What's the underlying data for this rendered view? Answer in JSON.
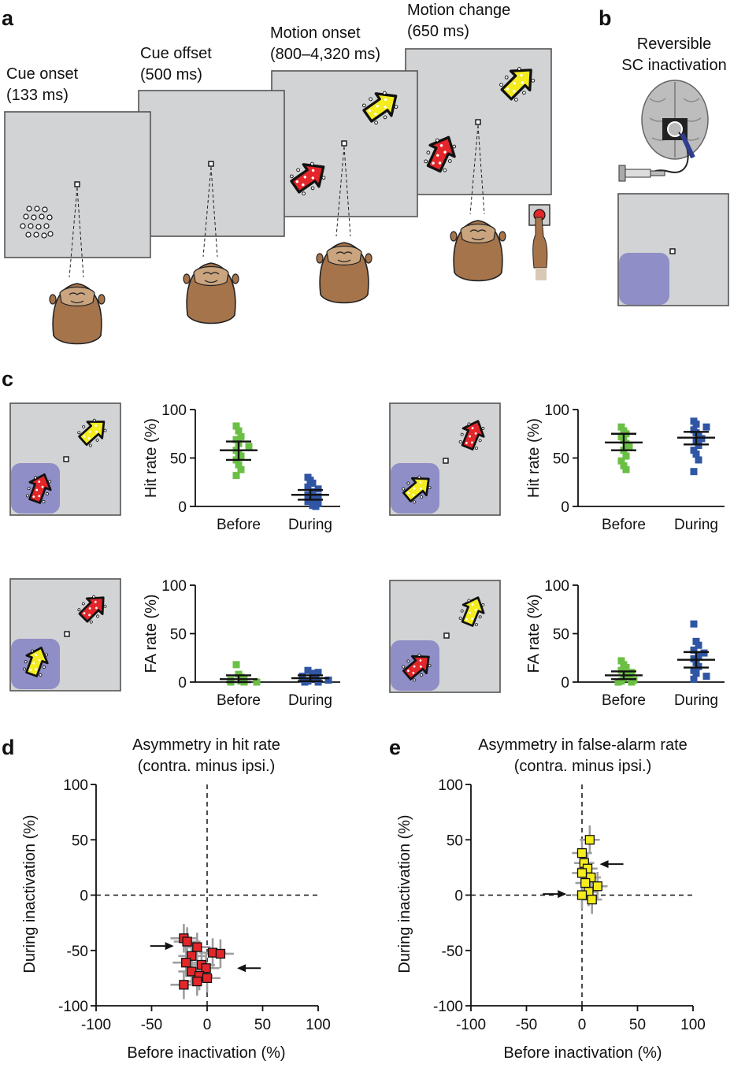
{
  "panel_labels": {
    "a": "a",
    "b": "b",
    "c": "c",
    "d": "d",
    "e": "e"
  },
  "panel_a": {
    "stages": [
      {
        "line1": "Cue onset",
        "line2": "(133 ms)"
      },
      {
        "line1": "Cue offset",
        "line2": "(500 ms)"
      },
      {
        "line1": "Motion onset",
        "line2": "(800–4,320 ms)"
      },
      {
        "line1": "Motion change",
        "line2": "(650 ms)"
      }
    ]
  },
  "panel_b": {
    "title_line1": "Reversible",
    "title_line2": "SC inactivation"
  },
  "colors": {
    "before": "#6abf45",
    "during": "#2f55a4",
    "hit_marker": "#e3262a",
    "fa_marker": "#f4ec1f",
    "field": "#8f8ec6",
    "screen": "#d2d3d5"
  },
  "chart_data": [
    {
      "id": "c-hit-left",
      "type": "scatter",
      "ylabel": "Hit rate (%)",
      "categories": [
        "Before",
        "During"
      ],
      "ylim": [
        0,
        100
      ],
      "yticks": [
        0,
        50,
        100
      ],
      "series": [
        {
          "name": "Before",
          "values": [
            83,
            78,
            72,
            69,
            65,
            62,
            58,
            55,
            52,
            48,
            43,
            38,
            32
          ],
          "mean": 58,
          "ci": [
            48,
            67
          ]
        },
        {
          "name": "During",
          "values": [
            30,
            27,
            24,
            20,
            18,
            15,
            12,
            10,
            8,
            5,
            3,
            1,
            0
          ],
          "mean": 12,
          "ci": [
            7,
            17
          ]
        }
      ]
    },
    {
      "id": "c-hit-right",
      "type": "scatter",
      "ylabel": "Hit rate (%)",
      "categories": [
        "Before",
        "During"
      ],
      "ylim": [
        0,
        100
      ],
      "yticks": [
        0,
        50,
        100
      ],
      "series": [
        {
          "name": "Before",
          "values": [
            82,
            78,
            75,
            72,
            68,
            65,
            62,
            58,
            52,
            47,
            42,
            38
          ],
          "mean": 66,
          "ci": [
            58,
            75
          ]
        },
        {
          "name": "During",
          "values": [
            88,
            85,
            82,
            79,
            76,
            73,
            70,
            67,
            63,
            58,
            54,
            48,
            36
          ],
          "mean": 71,
          "ci": [
            64,
            77
          ]
        }
      ]
    },
    {
      "id": "c-fa-left",
      "type": "scatter",
      "ylabel": "FA rate (%)",
      "categories": [
        "Before",
        "During"
      ],
      "ylim": [
        0,
        100
      ],
      "yticks": [
        0,
        50,
        100
      ],
      "series": [
        {
          "name": "Before",
          "values": [
            18,
            8,
            5,
            3,
            2,
            1,
            0,
            0,
            0
          ],
          "mean": 3,
          "ci": [
            0,
            7
          ]
        },
        {
          "name": "During",
          "values": [
            12,
            10,
            9,
            7,
            6,
            5,
            4,
            3,
            2,
            1,
            0,
            0
          ],
          "mean": 4,
          "ci": [
            1,
            7
          ]
        }
      ]
    },
    {
      "id": "c-fa-right",
      "type": "scatter",
      "ylabel": "FA rate (%)",
      "categories": [
        "Before",
        "During"
      ],
      "ylim": [
        0,
        100
      ],
      "yticks": [
        0,
        50,
        100
      ],
      "series": [
        {
          "name": "Before",
          "values": [
            22,
            18,
            15,
            12,
            10,
            8,
            6,
            4,
            2,
            1,
            0,
            0
          ],
          "mean": 7,
          "ci": [
            3,
            11
          ]
        },
        {
          "name": "During",
          "values": [
            60,
            42,
            38,
            33,
            30,
            27,
            24,
            20,
            16,
            12,
            9,
            6,
            3
          ],
          "mean": 23,
          "ci": [
            15,
            31
          ]
        }
      ]
    },
    {
      "id": "d-scatter",
      "type": "scatter",
      "title_line1": "Asymmetry in hit rate",
      "title_line2": "(contra. minus ipsi.)",
      "xlabel": "Before inactivation (%)",
      "ylabel": "During inactivation (%)",
      "xlim": [
        -100,
        100
      ],
      "ylim": [
        -100,
        100
      ],
      "xticks": [
        -100,
        -50,
        0,
        50,
        100
      ],
      "yticks": [
        -100,
        -50,
        0,
        50,
        100
      ],
      "marker_color": "#e3262a",
      "points": [
        {
          "x": -21,
          "y": -39
        },
        {
          "x": -18,
          "y": -42
        },
        {
          "x": -9,
          "y": -47
        },
        {
          "x": 5,
          "y": -52
        },
        {
          "x": 12,
          "y": -53
        },
        {
          "x": -14,
          "y": -55
        },
        {
          "x": -19,
          "y": -61
        },
        {
          "x": -5,
          "y": -63
        },
        {
          "x": -1,
          "y": -66
        },
        {
          "x": -14,
          "y": -69
        },
        {
          "x": -7,
          "y": -73
        },
        {
          "x": 0,
          "y": -75
        },
        {
          "x": -9,
          "y": -78
        },
        {
          "x": -21,
          "y": -81
        }
      ],
      "xerr": 12,
      "yerr": 13,
      "arrows": [
        {
          "x": -30,
          "y": -46,
          "dir": "right"
        },
        {
          "x": 27,
          "y": -66,
          "dir": "left"
        }
      ]
    },
    {
      "id": "e-scatter",
      "type": "scatter",
      "title_line1": "Asymmetry in false-alarm rate",
      "title_line2": "(contra. minus ipsi.)",
      "xlabel": "Before inactivation (%)",
      "ylabel": "During inactivation (%)",
      "xlim": [
        -100,
        100
      ],
      "ylim": [
        -100,
        100
      ],
      "xticks": [
        -100,
        -50,
        0,
        50,
        100
      ],
      "yticks": [
        -100,
        -50,
        0,
        50,
        100
      ],
      "marker_color": "#f4ec1f",
      "points": [
        {
          "x": 7,
          "y": 50
        },
        {
          "x": 0,
          "y": 38
        },
        {
          "x": 2,
          "y": 29
        },
        {
          "x": 5,
          "y": 24
        },
        {
          "x": 0,
          "y": 20
        },
        {
          "x": 8,
          "y": 16
        },
        {
          "x": 3,
          "y": 11
        },
        {
          "x": 14,
          "y": 8
        },
        {
          "x": 6,
          "y": 3
        },
        {
          "x": 0,
          "y": 0
        },
        {
          "x": 9,
          "y": -4
        }
      ],
      "xerr": 9,
      "yerr": 13,
      "arrows": [
        {
          "x": 16,
          "y": 28,
          "dir": "left"
        },
        {
          "x": -14,
          "y": 1,
          "dir": "right"
        }
      ]
    }
  ]
}
